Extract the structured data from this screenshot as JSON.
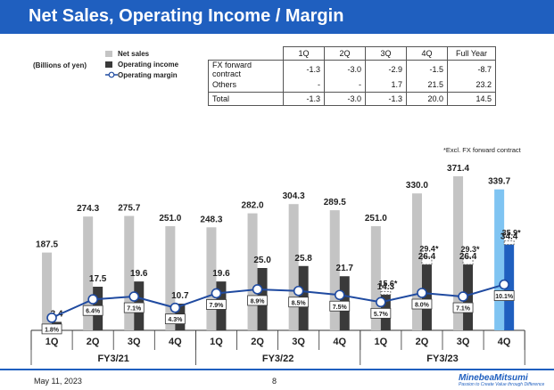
{
  "header": {
    "title": "Net Sales, Operating Income / Margin"
  },
  "unit_label": "(Billions of yen)",
  "legend": {
    "net_sales": "Net sales",
    "operating_income": "Operating income",
    "operating_margin": "Operating margin"
  },
  "fx_table": {
    "columns": [
      "1Q",
      "2Q",
      "3Q",
      "4Q",
      "Full Year"
    ],
    "rows": [
      {
        "label": "FX forward contract",
        "values": [
          "-1.3",
          "-3.0",
          "-2.9",
          "-1.5",
          "-8.7"
        ]
      },
      {
        "label": "Others",
        "values": [
          "-",
          "-",
          "1.7",
          "21.5",
          "23.2"
        ]
      },
      {
        "label": "Total",
        "values": [
          "-1.3",
          "-3.0",
          "-1.3",
          "20.0",
          "14.5"
        ]
      }
    ]
  },
  "note": "*Excl. FX forward contract",
  "colors": {
    "title_bar": "#1f5fbf",
    "net_sales": "#c4c4c4",
    "operating_income": "#3a3a3a",
    "margin_line": "#1f4aa0",
    "highlight_sales": "#7fc4f2",
    "highlight_income": "#1f5fbf"
  },
  "chart_data": {
    "type": "bar",
    "categories": [
      "1Q",
      "2Q",
      "3Q",
      "4Q",
      "1Q",
      "2Q",
      "3Q",
      "4Q",
      "1Q",
      "2Q",
      "3Q",
      "4Q"
    ],
    "fiscal_years": [
      {
        "label": "FY3/21",
        "quarters": 4
      },
      {
        "label": "FY3/22",
        "quarters": 4
      },
      {
        "label": "FY3/23",
        "quarters": 4
      }
    ],
    "series": [
      {
        "name": "Net sales",
        "values": [
          187.5,
          274.3,
          275.7,
          251.0,
          248.3,
          282.0,
          304.3,
          289.5,
          251.0,
          330.0,
          371.4,
          339.7
        ],
        "labels": [
          "187.5",
          "274.3",
          "275.7",
          "251.0",
          "248.3",
          "282.0",
          "304.3",
          "289.5",
          "251.0",
          "330.0",
          "371.4",
          "339.7"
        ]
      },
      {
        "name": "Operating income",
        "values": [
          3.4,
          17.5,
          19.6,
          10.7,
          19.6,
          25.0,
          25.8,
          21.7,
          14.3,
          26.4,
          26.4,
          34.4
        ],
        "labels": [
          "3.4",
          "17.5",
          "19.6",
          "10.7",
          "19.6",
          "25.0",
          "25.8",
          "21.7",
          "14.3",
          "26.4",
          "26.4",
          "34.4"
        ],
        "excl_fx_values": [
          null,
          null,
          null,
          null,
          null,
          null,
          null,
          null,
          15.6,
          29.4,
          29.3,
          35.9
        ],
        "excl_fx_labels": [
          null,
          null,
          null,
          null,
          null,
          null,
          null,
          null,
          "15.6*",
          "29.4*",
          "29.3*",
          "35.9*"
        ]
      },
      {
        "name": "Operating margin",
        "values": [
          1.8,
          6.4,
          7.1,
          4.3,
          7.9,
          8.9,
          8.5,
          7.5,
          5.7,
          8.0,
          7.1,
          10.1
        ],
        "labels": [
          "1.8%",
          "6.4%",
          "7.1%",
          "4.3%",
          "7.9%",
          "8.9%",
          "8.5%",
          "7.5%",
          "5.7%",
          "8.0%",
          "7.1%",
          "10.1%"
        ]
      }
    ],
    "highlight_index": 11
  },
  "footer": {
    "date": "May 11, 2023",
    "page": "8",
    "logo": "MinebeaMitsumi",
    "logo_tagline": "Passion to Create Value through Difference"
  }
}
